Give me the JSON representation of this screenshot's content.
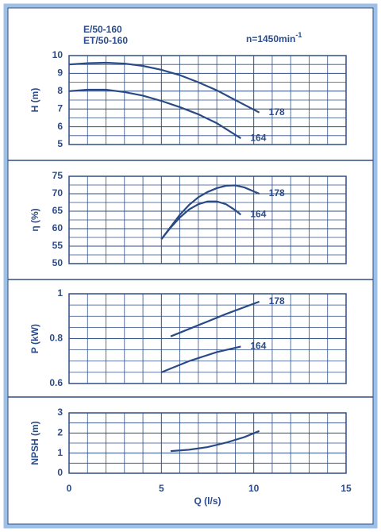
{
  "chart_data": [
    {
      "type": "line",
      "ylabel": "H (m)",
      "annotations": [
        {
          "text": "E/50-160"
        },
        {
          "text": "ET/50-160"
        },
        {
          "text": "n=1450min",
          "superscript": "-1"
        }
      ],
      "xlim": [
        0,
        15
      ],
      "xticks": [
        0,
        5,
        10,
        15
      ],
      "x_minor_divisions": 5,
      "ylim": [
        5,
        10
      ],
      "yticks": [
        5,
        6,
        7,
        8,
        9,
        10
      ],
      "y_minor_divisions": 2,
      "grid": true,
      "series": [
        {
          "name": "178",
          "color": "#2a4a86",
          "x": [
            0,
            1,
            2,
            3,
            4,
            5,
            6,
            7,
            8,
            9,
            10.3
          ],
          "values": [
            9.5,
            9.57,
            9.6,
            9.55,
            9.42,
            9.2,
            8.9,
            8.5,
            8.05,
            7.5,
            6.8
          ]
        },
        {
          "name": "164",
          "color": "#2a4a86",
          "x": [
            0,
            1,
            2,
            3,
            4,
            5,
            6,
            7,
            8,
            9.3
          ],
          "values": [
            8.0,
            8.08,
            8.08,
            7.95,
            7.75,
            7.45,
            7.1,
            6.7,
            6.2,
            5.35
          ]
        }
      ]
    },
    {
      "type": "line",
      "ylabel": "η (%)",
      "xlim": [
        0,
        15
      ],
      "xticks": [
        0,
        5,
        10,
        15
      ],
      "x_minor_divisions": 5,
      "ylim": [
        50,
        75
      ],
      "yticks": [
        50,
        55,
        60,
        65,
        70,
        75
      ],
      "y_minor_divisions": 2,
      "grid": true,
      "series": [
        {
          "name": "178",
          "color": "#2a4a86",
          "x": [
            5,
            5.5,
            6,
            6.5,
            7,
            7.5,
            8,
            8.5,
            9,
            9.5,
            10.3
          ],
          "values": [
            57,
            60.5,
            64,
            66.8,
            69,
            70.5,
            71.6,
            72.3,
            72.4,
            71.8,
            70
          ]
        },
        {
          "name": "164",
          "color": "#2a4a86",
          "x": [
            5,
            5.5,
            6,
            6.5,
            7,
            7.5,
            8,
            8.5,
            9,
            9.3
          ],
          "values": [
            57,
            60.3,
            63.2,
            65.5,
            67,
            67.8,
            67.8,
            67,
            65.3,
            64
          ]
        }
      ]
    },
    {
      "type": "line",
      "ylabel": "P (kW)",
      "xlim": [
        0,
        15
      ],
      "xticks": [
        0,
        5,
        10,
        15
      ],
      "x_minor_divisions": 5,
      "ylim": [
        0.6,
        1
      ],
      "yticks": [
        0.6,
        0.8,
        1
      ],
      "y_minor_divisions": 4,
      "grid": true,
      "series": [
        {
          "name": "178",
          "color": "#2a4a86",
          "x": [
            5.5,
            7,
            8.5,
            10.3
          ],
          "values": [
            0.81,
            0.86,
            0.91,
            0.965
          ]
        },
        {
          "name": "164",
          "color": "#2a4a86",
          "x": [
            5,
            6.5,
            8,
            9.3
          ],
          "values": [
            0.65,
            0.7,
            0.74,
            0.765
          ]
        }
      ]
    },
    {
      "type": "line",
      "ylabel": "NPSH (m)",
      "xlabel": "Q (l/s)",
      "xlim": [
        0,
        15
      ],
      "xticks": [
        0,
        5,
        10,
        15
      ],
      "x_minor_divisions": 5,
      "ylim": [
        0,
        3
      ],
      "yticks": [
        0,
        1,
        2,
        3
      ],
      "y_minor_divisions": 2,
      "grid": true,
      "series": [
        {
          "color": "#2a4a86",
          "x": [
            5.5,
            6.5,
            7.5,
            8.5,
            9.5,
            10.3
          ],
          "values": [
            1.1,
            1.17,
            1.3,
            1.52,
            1.8,
            2.1
          ]
        }
      ]
    }
  ]
}
